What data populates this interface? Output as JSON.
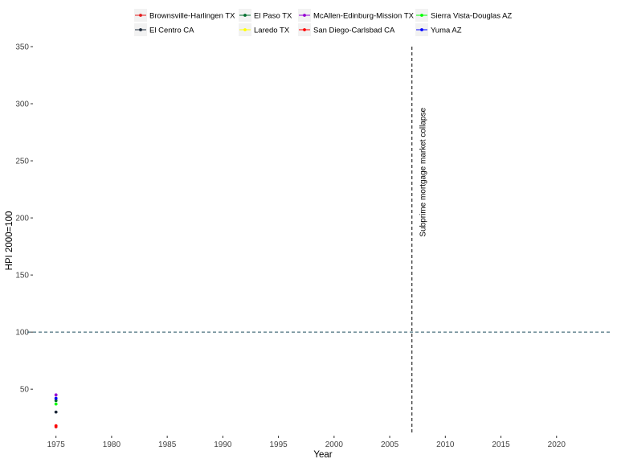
{
  "chart_data": {
    "type": "line",
    "title": "",
    "xlabel": "Year",
    "ylabel": "HPI 2000=100",
    "xlim": [
      1973,
      2025
    ],
    "ylim": [
      10,
      350
    ],
    "x_ticks": [
      1975,
      1980,
      1985,
      1990,
      1995,
      2000,
      2005,
      2010,
      2015,
      2020
    ],
    "y_ticks": [
      50,
      100,
      150,
      200,
      250,
      300,
      350
    ],
    "grid": false,
    "legend_position": "top",
    "series": [
      {
        "name": "Brownsville-Harlingen TX",
        "color": "#E41A1C",
        "x": [
          1975
        ],
        "y": [
          17
        ]
      },
      {
        "name": "El Centro CA",
        "color": "#1B2838",
        "x": [
          1975
        ],
        "y": [
          30
        ]
      },
      {
        "name": "El Paso TX",
        "color": "#006D2C",
        "x": [
          1975
        ],
        "y": [
          40
        ]
      },
      {
        "name": "Laredo TX",
        "color": "#FFFF00",
        "x": [
          1975
        ],
        "y": [
          42
        ]
      },
      {
        "name": "McAllen-Edinburg-Mission TX",
        "color": "#9400D3",
        "x": [
          1975
        ],
        "y": [
          45
        ]
      },
      {
        "name": "San Diego-Carlsbad CA",
        "color": "#FF0000",
        "x": [
          1975
        ],
        "y": [
          18
        ]
      },
      {
        "name": "Sierra Vista-Douglas AZ",
        "color": "#00FF00",
        "x": [
          1975
        ],
        "y": [
          37
        ]
      },
      {
        "name": "Yuma AZ",
        "color": "#0000FF",
        "x": [
          1975
        ],
        "y": [
          42
        ]
      }
    ],
    "reference_lines": [
      {
        "orientation": "horizontal",
        "value": 100,
        "style": "dashed",
        "color": "#1F4E5F"
      },
      {
        "orientation": "vertical",
        "value": 2007,
        "style": "dashed",
        "color": "#000000"
      }
    ],
    "annotations": [
      {
        "text": "Subprime mortgage market collapse",
        "x": 2008,
        "y": 240,
        "rotation": -90
      }
    ]
  }
}
